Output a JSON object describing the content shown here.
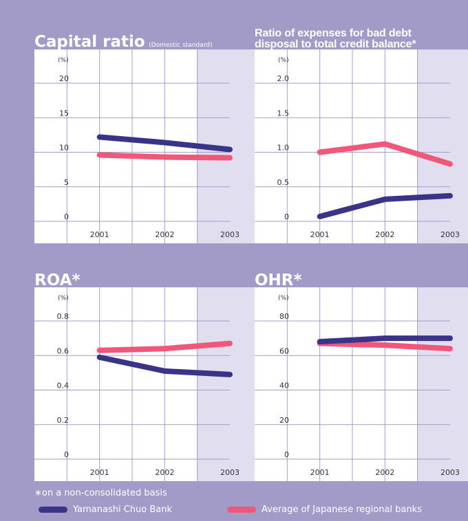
{
  "colors": {
    "background": "#a39bc7",
    "plot_bg": "#ffffff",
    "shade": "#e1def0",
    "grid": "#a39bc7",
    "bank": "#3a3489",
    "regional": "#f0587a"
  },
  "footnote": "∗on a non-consolidated basis",
  "legend": {
    "bank": "Yamanashi Chuo Bank",
    "regional": "Average of Japanese regional banks"
  },
  "chart_data": [
    {
      "id": "capital",
      "type": "line",
      "title": "Capital ratio",
      "subtitle": "(Domestic standard)",
      "unit": "(%)",
      "categories": [
        "2001",
        "2002",
        "2003"
      ],
      "yticks": [
        "0",
        "5",
        "10",
        "15",
        "20"
      ],
      "ylim": [
        0,
        20
      ],
      "shaded_category": "2003",
      "series": [
        {
          "name": "Yamanashi Chuo Bank",
          "color_key": "bank",
          "values": [
            12.2,
            11.4,
            10.4
          ]
        },
        {
          "name": "Average of Japanese regional banks",
          "color_key": "regional",
          "values": [
            9.6,
            9.3,
            9.2
          ]
        }
      ]
    },
    {
      "id": "baddebt",
      "type": "line",
      "title": "Ratio of expenses for bad debt disposal to total credit balance*",
      "title_lines": [
        "Ratio of expenses for bad debt",
        "disposal to total credit balance*"
      ],
      "subtitle": "",
      "unit": "(%)",
      "categories": [
        "2001",
        "2002",
        "2003"
      ],
      "yticks": [
        "0",
        "0.5",
        "1.0",
        "1.5",
        "2.0"
      ],
      "ylim": [
        0,
        2.0
      ],
      "shaded_category": "2003",
      "series": [
        {
          "name": "Yamanashi Chuo Bank",
          "color_key": "bank",
          "values": [
            0.07,
            0.32,
            0.37
          ]
        },
        {
          "name": "Average of Japanese regional banks",
          "color_key": "regional",
          "values": [
            1.0,
            1.12,
            0.83
          ]
        }
      ]
    },
    {
      "id": "roa",
      "type": "line",
      "title": "ROA*",
      "subtitle": "",
      "unit": "(%)",
      "categories": [
        "2001",
        "2002",
        "2003"
      ],
      "yticks": [
        "0",
        "0.2",
        "0.4",
        "0.6",
        "0.8"
      ],
      "ylim": [
        0,
        0.8
      ],
      "shaded_category": "2003",
      "series": [
        {
          "name": "Yamanashi Chuo Bank",
          "color_key": "bank",
          "values": [
            0.59,
            0.51,
            0.49
          ]
        },
        {
          "name": "Average of Japanese regional banks",
          "color_key": "regional",
          "values": [
            0.63,
            0.64,
            0.67
          ]
        }
      ]
    },
    {
      "id": "ohr",
      "type": "line",
      "title": "OHR*",
      "subtitle": "",
      "unit": "(%)",
      "categories": [
        "2001",
        "2002",
        "2003"
      ],
      "yticks": [
        "0",
        "20",
        "40",
        "60",
        "80"
      ],
      "ylim": [
        0,
        80
      ],
      "shaded_category": "2003",
      "series": [
        {
          "name": "Yamanashi Chuo Bank",
          "color_key": "bank",
          "values": [
            68,
            70,
            70
          ]
        },
        {
          "name": "Average of Japanese regional banks",
          "color_key": "regional",
          "values": [
            67,
            66,
            64
          ]
        }
      ]
    }
  ]
}
